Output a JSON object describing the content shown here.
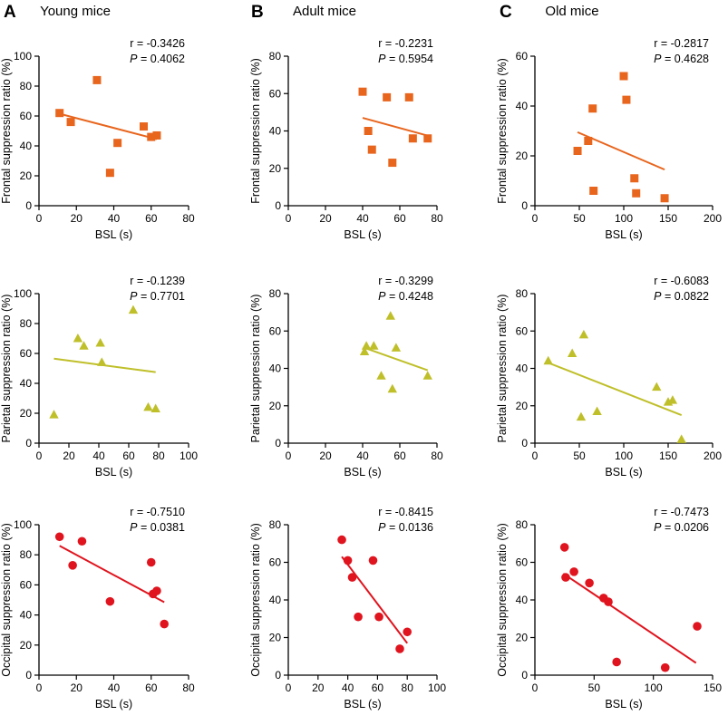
{
  "figure": {
    "columns": [
      {
        "letter": "A",
        "title": "Young mice"
      },
      {
        "letter": "B",
        "title": "Adult mice"
      },
      {
        "letter": "C",
        "title": "Old mice"
      }
    ],
    "colors": {
      "frontal": "#E8651D",
      "parietal": "#BFBF2A",
      "occipital": "#E0141E",
      "axis": "#000000"
    }
  },
  "chart_data": [
    {
      "id": "A-frontal",
      "type": "scatter",
      "marker": "square",
      "color": "#E8651D",
      "xlabel": "BSL (s)",
      "ylabel": "Frontal suppression ratio (%)",
      "xlim": [
        0,
        80
      ],
      "ylim": [
        0,
        100
      ],
      "xticks": [
        0,
        20,
        40,
        60,
        80
      ],
      "yticks": [
        0,
        20,
        40,
        60,
        80,
        100
      ],
      "x": [
        11,
        17,
        31,
        38,
        42,
        56,
        60,
        63
      ],
      "y": [
        62,
        56,
        84,
        22,
        42,
        53,
        46,
        47
      ],
      "fit": {
        "x1": 11,
        "y1": 61.5,
        "x2": 63,
        "y2": 44.5
      },
      "stats": {
        "r_text": "r = -0.3426",
        "p_label": "P",
        "p_value": " = 0.4062"
      }
    },
    {
      "id": "B-frontal",
      "type": "scatter",
      "marker": "square",
      "color": "#E8651D",
      "xlabel": "BSL (s)",
      "ylabel": "Frontal suppression ratio (%)",
      "xlim": [
        0,
        80
      ],
      "ylim": [
        0,
        80
      ],
      "xticks": [
        0,
        20,
        40,
        60,
        80
      ],
      "yticks": [
        0,
        20,
        40,
        60,
        80
      ],
      "x": [
        40,
        43,
        45,
        53,
        56,
        65,
        67,
        75
      ],
      "y": [
        61,
        40,
        30,
        58,
        23,
        58,
        36,
        36
      ],
      "fit": {
        "x1": 40,
        "y1": 47,
        "x2": 75,
        "y2": 37.5
      },
      "stats": {
        "r_text": "r = -0.2231",
        "p_label": "P",
        "p_value": " = 0.5954"
      }
    },
    {
      "id": "C-frontal",
      "type": "scatter",
      "marker": "square",
      "color": "#E8651D",
      "xlabel": "BSL (s)",
      "ylabel": "Frontal suppression ratio (%)",
      "xlim": [
        0,
        200
      ],
      "ylim": [
        0,
        60
      ],
      "xticks": [
        0,
        50,
        100,
        150,
        200
      ],
      "yticks": [
        0,
        20,
        40,
        60
      ],
      "x": [
        48,
        60,
        65,
        66,
        100,
        103,
        112,
        114,
        146
      ],
      "y": [
        22,
        26,
        39,
        6,
        52,
        42.5,
        11,
        5,
        3
      ],
      "fit": {
        "x1": 48,
        "y1": 29.5,
        "x2": 146,
        "y2": 14.5
      },
      "stats": {
        "r_text": "r = -0.2817",
        "p_label": "P",
        "p_value": " = 0.4628"
      }
    },
    {
      "id": "A-parietal",
      "type": "scatter",
      "marker": "triangle",
      "color": "#BFBF2A",
      "xlabel": "BSL (s)",
      "ylabel": "Parietal suppression ratio (%)",
      "xlim": [
        0,
        100
      ],
      "ylim": [
        0,
        100
      ],
      "xticks": [
        0,
        20,
        40,
        60,
        80,
        100
      ],
      "yticks": [
        0,
        20,
        40,
        60,
        80,
        100
      ],
      "x": [
        10,
        26,
        30,
        41,
        42,
        63,
        73,
        78
      ],
      "y": [
        19,
        70,
        65,
        67,
        54,
        89,
        24,
        23
      ],
      "fit": {
        "x1": 10,
        "y1": 56.5,
        "x2": 78,
        "y2": 47.5
      },
      "stats": {
        "r_text": "r = -0.1239",
        "p_label": "P",
        "p_value": " = 0.7701"
      }
    },
    {
      "id": "B-parietal",
      "type": "scatter",
      "marker": "triangle",
      "color": "#BFBF2A",
      "xlabel": "BSL (s)",
      "ylabel": "Parietal suppression ratio (%)",
      "xlim": [
        0,
        80
      ],
      "ylim": [
        0,
        80
      ],
      "xticks": [
        0,
        20,
        40,
        60,
        80
      ],
      "yticks": [
        0,
        20,
        40,
        60,
        80
      ],
      "x": [
        41,
        42,
        46,
        50,
        55,
        56,
        58,
        75
      ],
      "y": [
        49,
        52,
        52,
        36,
        68,
        29,
        51,
        36
      ],
      "fit": {
        "x1": 41,
        "y1": 51,
        "x2": 75,
        "y2": 39
      },
      "stats": {
        "r_text": "r = -0.3299",
        "p_label": "P",
        "p_value": " = 0.4248"
      }
    },
    {
      "id": "C-parietal",
      "type": "scatter",
      "marker": "triangle",
      "color": "#BFBF2A",
      "xlabel": "BSL (s)",
      "ylabel": "Parietal suppression ratio (%)",
      "xlim": [
        0,
        200
      ],
      "ylim": [
        0,
        80
      ],
      "xticks": [
        0,
        50,
        100,
        150,
        200
      ],
      "yticks": [
        0,
        20,
        40,
        60,
        80
      ],
      "x": [
        15,
        42,
        52,
        55,
        70,
        137,
        150,
        155,
        165
      ],
      "y": [
        44,
        48,
        14,
        58,
        17,
        30,
        22,
        23,
        2
      ],
      "fit": {
        "x1": 15,
        "y1": 43,
        "x2": 165,
        "y2": 15
      },
      "stats": {
        "r_text": "r = -0.6083",
        "p_label": "P",
        "p_value": " = 0.0822"
      }
    },
    {
      "id": "A-occipital",
      "type": "scatter",
      "marker": "circle",
      "color": "#E0141E",
      "xlabel": "BSL (s)",
      "ylabel": "Occipital suppression ratio (%)",
      "xlim": [
        0,
        80
      ],
      "ylim": [
        0,
        100
      ],
      "xticks": [
        0,
        20,
        40,
        60,
        80
      ],
      "yticks": [
        0,
        20,
        40,
        60,
        80,
        100
      ],
      "x": [
        11,
        18,
        23,
        38,
        60,
        61,
        63,
        67
      ],
      "y": [
        92,
        73,
        89,
        49,
        75,
        54,
        56,
        34
      ],
      "fit": {
        "x1": 11,
        "y1": 86,
        "x2": 67,
        "y2": 48.5
      },
      "stats": {
        "r_text": "r = -0.7510",
        "p_label": "P",
        "p_value": " = 0.0381"
      }
    },
    {
      "id": "B-occipital",
      "type": "scatter",
      "marker": "circle",
      "color": "#E0141E",
      "xlabel": "BSL (s)",
      "ylabel": "Occipital suppression ratio (%)",
      "xlim": [
        0,
        100
      ],
      "ylim": [
        0,
        80
      ],
      "xticks": [
        0,
        20,
        40,
        60,
        80,
        100
      ],
      "yticks": [
        0,
        20,
        40,
        60,
        80
      ],
      "x": [
        36,
        40,
        43,
        47,
        57,
        61,
        75,
        80
      ],
      "y": [
        72,
        61,
        52,
        31,
        61,
        31,
        14,
        23
      ],
      "fit": {
        "x1": 36,
        "y1": 63,
        "x2": 80,
        "y2": 17
      },
      "stats": {
        "r_text": "r = -0.8415",
        "p_label": "P",
        "p_value": " = 0.0136"
      }
    },
    {
      "id": "C-occipital",
      "type": "scatter",
      "marker": "circle",
      "color": "#E0141E",
      "xlabel": "BSL (s)",
      "ylabel": "Occipital suppression ratio (%)",
      "xlim": [
        0,
        150
      ],
      "ylim": [
        0,
        80
      ],
      "xticks": [
        0,
        50,
        100,
        150
      ],
      "yticks": [
        0,
        20,
        40,
        60,
        80
      ],
      "x": [
        25,
        26,
        33,
        46,
        58,
        62,
        69,
        110,
        137
      ],
      "y": [
        68,
        52,
        55,
        49,
        41,
        39,
        7,
        4,
        26
      ],
      "fit": {
        "x1": 24,
        "y1": 54,
        "x2": 136,
        "y2": 6.5
      },
      "stats": {
        "r_text": "r = -0.7473",
        "p_label": "P",
        "p_value": " = 0.0206"
      }
    }
  ]
}
